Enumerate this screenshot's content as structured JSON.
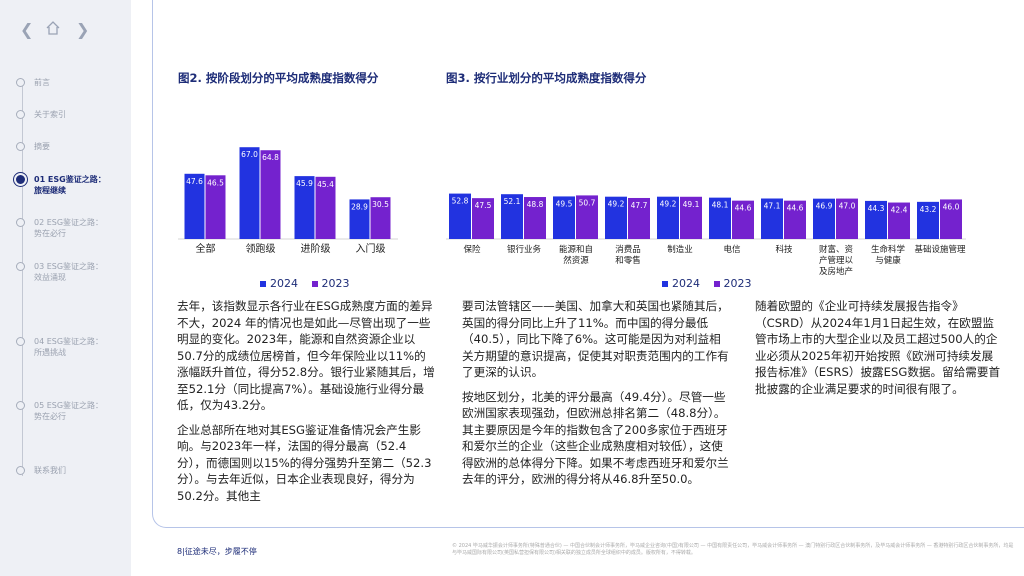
{
  "nav": {
    "back_icon": "chevron-left-icon",
    "home_icon": "home-icon",
    "forward_icon": "chevron-right-icon"
  },
  "sidebar": {
    "items": [
      {
        "label": "前言"
      },
      {
        "label": "关于索引"
      },
      {
        "label": "摘要"
      },
      {
        "label": "01 ESG鉴证之路：\n旅程继续",
        "active": true
      },
      {
        "label": "02 ESG鉴证之路：\n势在必行"
      },
      {
        "label": "03 ESG鉴证之路：\n效益涌现"
      },
      {
        "label": "04 ESG鉴证之路：\n所遇挑战"
      },
      {
        "label": "05 ESG鉴证之路：\n势在必行"
      },
      {
        "label": "联系我们"
      }
    ]
  },
  "colors": {
    "c2024": "#2233e0",
    "c2023": "#7422ce",
    "brand": "#1e2d78"
  },
  "chart_data": [
    {
      "type": "bar",
      "title": "图2. 按阶段划分的平均成熟度指数得分",
      "categories": [
        "全部",
        "领跑级",
        "进阶级",
        "入门级"
      ],
      "series": [
        {
          "name": "2024",
          "values": [
            47.6,
            67.0,
            45.9,
            28.9
          ]
        },
        {
          "name": "2023",
          "values": [
            46.5,
            64.8,
            45.4,
            30.5
          ]
        }
      ],
      "value_labels": [
        [
          "47.6",
          "67.0",
          "45.9",
          "28.9"
        ],
        [
          "46.5",
          "64.8",
          "45.4",
          "30.5"
        ]
      ],
      "legend": "bottom"
    },
    {
      "type": "bar",
      "title": "图3. 按行业划分的平均成熟度指数得分",
      "categories": [
        "保险",
        "银行业务",
        "能源和自\n然资源",
        "消费品\n和零售",
        "制造业",
        "电信",
        "科技",
        "财富、资\n产管理以\n及房地产",
        "生命科学\n与健康",
        "基础设施管理"
      ],
      "series": [
        {
          "name": "2024",
          "values": [
            52.8,
            52.1,
            49.5,
            49.2,
            49.2,
            48.1,
            47.1,
            46.9,
            44.3,
            43.2
          ]
        },
        {
          "name": "2023",
          "values": [
            47.5,
            48.8,
            50.7,
            47.7,
            49.1,
            44.6,
            44.6,
            47.0,
            42.4,
            46.0
          ]
        }
      ],
      "value_labels": [
        [
          "52.8",
          "52.1",
          "49.5",
          "49.2",
          "49.2",
          "48.1",
          "47.1",
          "46.9",
          "44.3",
          "43.2"
        ],
        [
          "47.5",
          "48.8",
          "50.7",
          "47.7",
          "49.1",
          "44.6",
          "44.6",
          "47.0",
          "42.4",
          "46.0"
        ]
      ],
      "legend": "bottom"
    }
  ],
  "text": {
    "col1": [
      "去年，该指数显示各行业在ESG成熟度方面的差异不大，2024 年的情况也是如此—尽管出现了一些明显的变化。2023年，能源和自然资源企业以50.7分的成绩位居榜首，但今年保险业以11%的涨幅跃升首位，得分52.8分。银行业紧随其后，增至52.1分（同比提高7%）。基础设施行业得分最低，仅为43.2分。",
      "企业总部所在地对其ESG鉴证准备情况会产生影响。与2023年一样，法国的得分最高（52.4分），而德国则以15%的得分强势升至第二（52.3分）。与去年近似，日本企业表现良好，得分为50.2分。其他主"
    ],
    "col2": [
      "要司法管辖区——美国、加拿大和英国也紧随其后，英国的得分同比上升了11%。而中国的得分最低（40.5），同比下降了6%。这可能是因为对利益相关方期望的意识提高，促使其对职责范围内的工作有了更深的认识。",
      "按地区划分，北美的评分最高（49.4分）。尽管一些欧洲国家表现强劲，但欧洲总排名第二（48.8分）。其主要原因是今年的指数包含了200多家位于西班牙和爱尔兰的企业（这些企业成熟度相对较低），这使得欧洲的总体得分下降。如果不考虑西班牙和爱尔兰去年的评分，欧洲的得分将从46.8升至50.0。"
    ],
    "col3": [
      "随着欧盟的《企业可持续发展报告指令》（CSRD）从2024年1月1日起生效，在欧盟监管市场上市的大型企业以及员工超过500人的企业必须从2025年初开始按照《欧洲可持续发展报告标准》（ESRS）披露ESG数据。留给需要首批披露的企业满足要求的时间很有限了。"
    ]
  },
  "footer": {
    "page": "8|征途未尽，步履不停",
    "legal": "© 2024 毕马威华振会计师事务所(特殊普通合伙) — 中国合伙制会计师事务所，毕马威企业咨询(中国)有限公司 — 中国有限责任公司，毕马威会计师事务所 — 澳门特别行政区合伙制事务所，及毕马威会计师事务所 — 香港特别行政区合伙制事务所，均是与毕马威国际有限公司(英国私营担保有限公司)相关联的独立成员所全球组织中的成员。版权所有，不得转载。"
  }
}
